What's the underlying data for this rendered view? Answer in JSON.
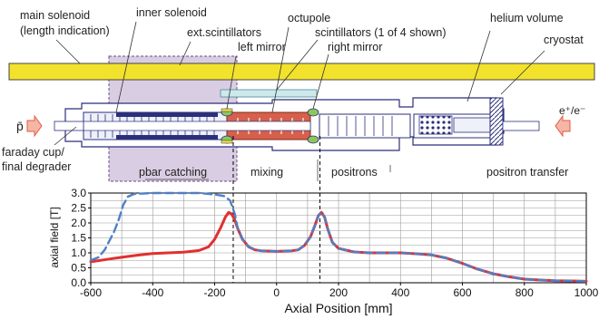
{
  "labels": {
    "main_solenoid_1": "main solenoid",
    "main_solenoid_2": "(length indication)",
    "inner_solenoid": "inner solenoid",
    "ext_scintillators": "ext.scintillators",
    "left_mirror": "left mirror",
    "octupole": "octupole",
    "scintillators": "scintillators (1 of 4 shown)",
    "right_mirror": "right mirror",
    "helium_volume": "helium volume",
    "cryostat": "cryostat",
    "pbar": "p̄",
    "positron_beam": "e⁺/e⁻",
    "faraday_1": "faraday cup/",
    "faraday_2": "final degrader"
  },
  "regions": {
    "pbar_catching": "pbar catching",
    "mixing": "mixing",
    "positrons": "positrons",
    "positron_transfer": "positron transfer"
  },
  "colors": {
    "solenoid": "#f2e22c",
    "catching_region": "#d9cde3",
    "octupole": "#d6604b",
    "helium_window": "#cde9ec",
    "structure": "#2b2f7a",
    "series_solid": "#e0302f",
    "series_dashed": "#4f7fc6",
    "arrow_fill": "#f4b7a6",
    "arrow_stroke": "#e05a44"
  },
  "chart_data": {
    "type": "line",
    "xlabel": "Axial Position [mm]",
    "ylabel": "axial field [T]",
    "xlim": [
      -600,
      1000
    ],
    "ylim": [
      0.0,
      3.0
    ],
    "xticks": [
      -600,
      -400,
      -200,
      0,
      200,
      400,
      600,
      800,
      1000
    ],
    "yticks": [
      0.0,
      0.5,
      1.0,
      1.5,
      2.0,
      2.5,
      3.0
    ],
    "ytick_labels": [
      "0.0",
      "0.5",
      "1.0",
      "1.5",
      "2.0",
      "2.5",
      "3.0"
    ],
    "grid": true,
    "vlines": [
      -140,
      140
    ],
    "series": [
      {
        "style": "solid",
        "x": [
          -600,
          -550,
          -500,
          -450,
          -400,
          -350,
          -300,
          -250,
          -220,
          -200,
          -180,
          -165,
          -155,
          -145,
          -135,
          -125,
          -110,
          -90,
          -70,
          -50,
          0,
          50,
          70,
          90,
          110,
          125,
          135,
          145,
          155,
          165,
          180,
          200,
          250,
          300,
          350,
          400,
          450,
          500,
          550,
          600,
          650,
          700,
          750,
          800,
          850,
          900,
          950,
          1000
        ],
        "y": [
          0.7,
          0.78,
          0.85,
          0.92,
          0.98,
          1.0,
          1.02,
          1.08,
          1.2,
          1.45,
          1.85,
          2.2,
          2.35,
          2.3,
          2.1,
          1.8,
          1.45,
          1.2,
          1.1,
          1.07,
          1.05,
          1.07,
          1.1,
          1.25,
          1.55,
          1.95,
          2.25,
          2.35,
          2.2,
          1.8,
          1.35,
          1.15,
          1.03,
          1.0,
          1.0,
          1.0,
          0.97,
          0.93,
          0.82,
          0.65,
          0.45,
          0.3,
          0.2,
          0.12,
          0.09,
          0.07,
          0.06,
          0.05
        ]
      },
      {
        "style": "dashed",
        "x": [
          -600,
          -575,
          -555,
          -540,
          -525,
          -510,
          -495,
          -480,
          -460,
          -400,
          -300,
          -250,
          -200,
          -170,
          -150,
          -135,
          -125,
          -110,
          -90,
          -70,
          -50,
          0,
          50,
          70,
          90,
          110,
          125,
          135,
          145,
          155,
          165,
          180,
          200,
          250,
          300,
          350,
          400,
          450,
          500,
          550,
          600,
          650,
          700,
          750,
          800,
          850,
          900,
          950,
          1000
        ],
        "y": [
          0.75,
          0.85,
          1.1,
          1.4,
          1.7,
          2.1,
          2.6,
          2.88,
          2.97,
          3.0,
          3.0,
          3.0,
          2.95,
          2.9,
          2.75,
          2.3,
          1.8,
          1.45,
          1.2,
          1.1,
          1.07,
          1.05,
          1.07,
          1.1,
          1.25,
          1.55,
          1.95,
          2.25,
          2.35,
          2.2,
          1.8,
          1.35,
          1.15,
          1.03,
          1.0,
          1.0,
          1.0,
          0.97,
          0.93,
          0.82,
          0.65,
          0.45,
          0.3,
          0.2,
          0.12,
          0.09,
          0.07,
          0.06,
          0.05
        ]
      }
    ]
  }
}
